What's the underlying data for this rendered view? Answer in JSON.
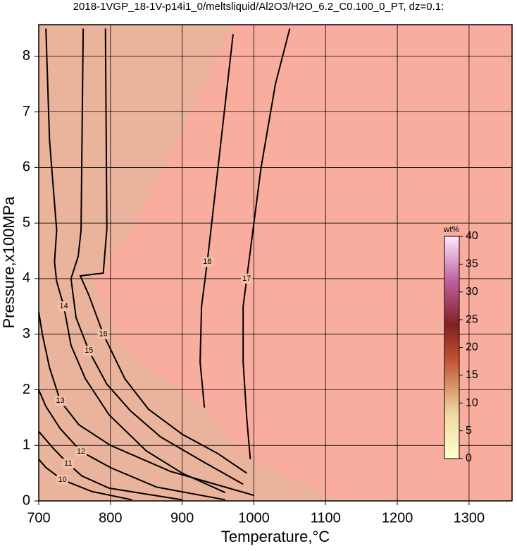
{
  "chart_data": {
    "type": "contour",
    "title": "2018-1VGP_18-1V-p14i1_0/meltsliquid/Al2O3/H2O_6.2_C0.100_0_PT, dz=0.1:",
    "x_label": "Temperature,°C",
    "y_label": "Pressure,x100MPa",
    "xlim": [
      700,
      1360
    ],
    "ylim": [
      0,
      8.57
    ],
    "xticks": [
      700,
      800,
      900,
      1000,
      1100,
      1200,
      1300
    ],
    "yticks": [
      0,
      1,
      2,
      3,
      4,
      5,
      6,
      7,
      8
    ],
    "grid": true,
    "series": [
      {
        "name": "17",
        "color": "#000000",
        "x": [
          995,
          990,
          985,
          985,
          990,
          1010,
          1030,
          1050
        ],
        "y": [
          0.75,
          1.5,
          2.5,
          3.5,
          4.0,
          6.0,
          7.5,
          8.5
        ]
      },
      {
        "name": "18",
        "color": "#000000",
        "x": [
          931,
          925,
          927,
          935,
          950,
          971
        ],
        "y": [
          1.68,
          2.5,
          3.5,
          4.3,
          6.0,
          8.4
        ]
      },
      {
        "name": "16",
        "color": "#000000",
        "x": [
          990,
          950,
          900,
          853,
          820,
          790,
          770,
          758,
          790,
          795,
          793
        ],
        "y": [
          0.5,
          0.85,
          1.2,
          1.65,
          2.2,
          3.0,
          3.7,
          4.05,
          4.1,
          4.9,
          8.5
        ]
      },
      {
        "name": "15",
        "color": "#000000",
        "x": [
          985,
          930,
          870,
          828,
          795,
          770,
          752,
          745,
          755,
          759,
          762
        ],
        "y": [
          0.3,
          0.7,
          1.15,
          1.62,
          2.1,
          2.7,
          3.3,
          4.0,
          4.4,
          4.87,
          8.5
        ]
      },
      {
        "name": "14",
        "color": "#000000",
        "x": [
          960,
          900,
          850,
          798,
          765,
          745,
          735,
          725,
          722,
          725,
          715,
          710
        ],
        "y": [
          0.15,
          0.5,
          0.9,
          1.55,
          2.2,
          2.8,
          3.5,
          3.95,
          4.3,
          4.87,
          6.5,
          8.5
        ]
      },
      {
        "name": "13",
        "color": "#000000",
        "x": [
          1000,
          884,
          800,
          756,
          730,
          715,
          705,
          700
        ],
        "y": [
          0.1,
          0.53,
          1.0,
          1.37,
          1.8,
          2.4,
          3.0,
          3.4
        ]
      },
      {
        "name": "12",
        "color": "#000000",
        "x": [
          960,
          864,
          800,
          759,
          730,
          710,
          700
        ],
        "y": [
          0.02,
          0.25,
          0.6,
          0.89,
          1.3,
          1.7,
          2.0
        ]
      },
      {
        "name": "11",
        "color": "#000000",
        "x": [
          900,
          798,
          760,
          741,
          720,
          700
        ],
        "y": [
          0.02,
          0.23,
          0.45,
          0.67,
          0.95,
          1.25
        ]
      },
      {
        "name": "10",
        "color": "#000000",
        "x": [
          830,
          774,
          733,
          710,
          700
        ],
        "y": [
          0.02,
          0.17,
          0.38,
          0.6,
          0.75
        ]
      }
    ],
    "colorbar": {
      "label": "wt%",
      "lim": [
        0,
        40
      ],
      "ticks": [
        0,
        5,
        10,
        15,
        20,
        25,
        30,
        35,
        40
      ]
    }
  }
}
